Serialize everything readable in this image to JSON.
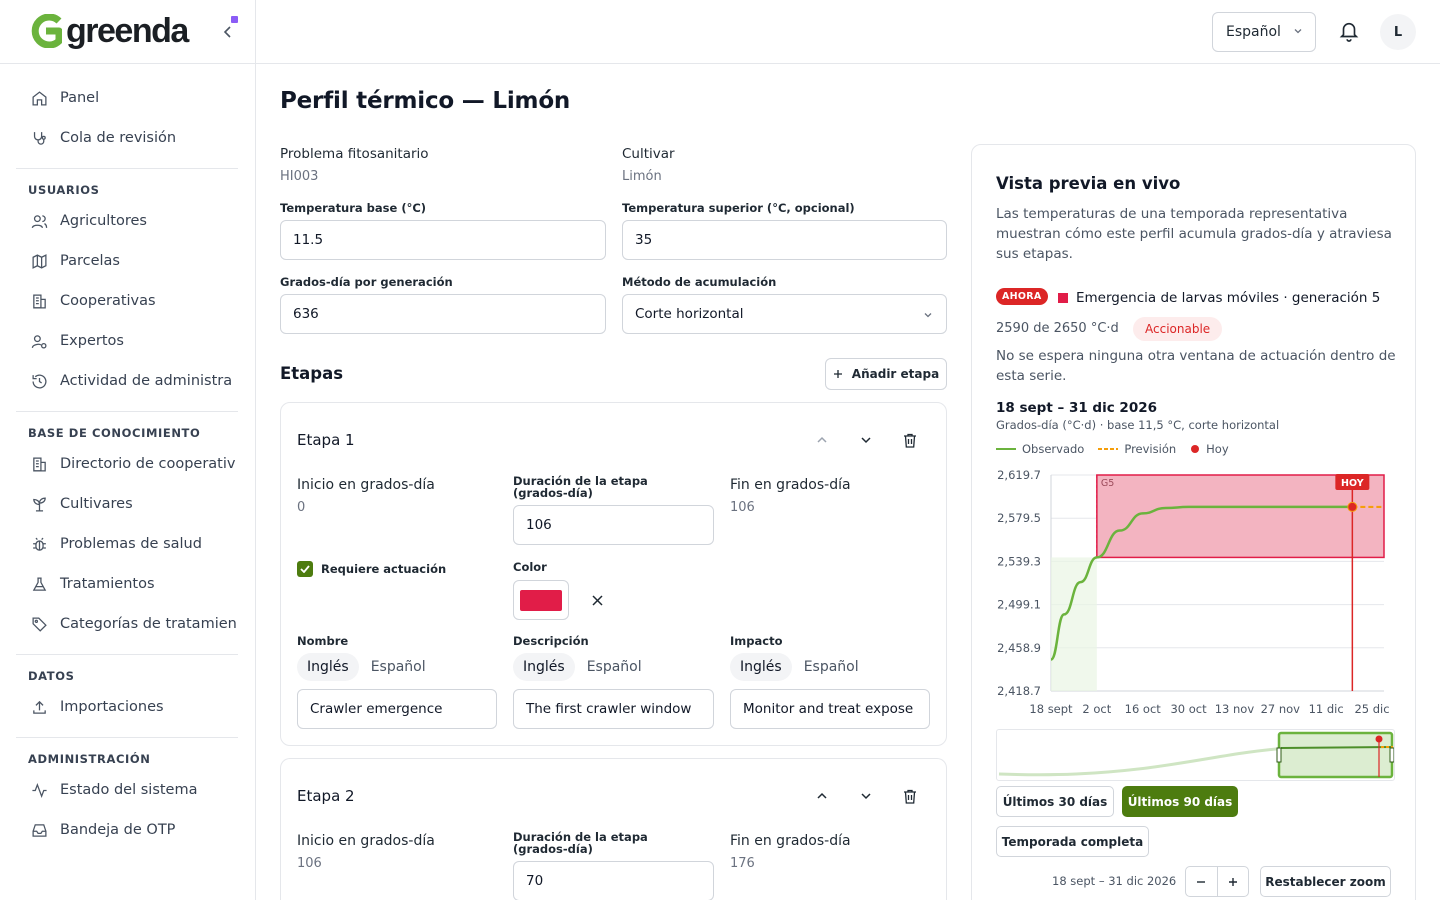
{
  "brand": {
    "name": "greenda"
  },
  "sidebar": {
    "top_items": [
      {
        "label": "Panel",
        "icon": "home-icon"
      },
      {
        "label": "Cola de revisión",
        "icon": "stethoscope-icon"
      }
    ],
    "sections": [
      {
        "heading": "USUARIOS",
        "items": [
          {
            "label": "Agricultores",
            "icon": "users-icon"
          },
          {
            "label": "Parcelas",
            "icon": "map-icon"
          },
          {
            "label": "Cooperativas",
            "icon": "building-icon"
          },
          {
            "label": "Expertos",
            "icon": "user-cog-icon"
          },
          {
            "label": "Actividad de administra",
            "icon": "history-icon"
          }
        ]
      },
      {
        "heading": "BASE DE CONOCIMIENTO",
        "items": [
          {
            "label": "Directorio de cooperativ",
            "icon": "building-icon"
          },
          {
            "label": "Cultivares",
            "icon": "sprout-icon"
          },
          {
            "label": "Problemas de salud",
            "icon": "bug-icon"
          },
          {
            "label": "Tratamientos",
            "icon": "flask-icon"
          },
          {
            "label": "Categorías de tratamien",
            "icon": "tag-icon"
          }
        ]
      },
      {
        "heading": "DATOS",
        "items": [
          {
            "label": "Importaciones",
            "icon": "upload-icon"
          }
        ]
      },
      {
        "heading": "ADMINISTRACIÓN",
        "items": [
          {
            "label": "Estado del sistema",
            "icon": "activity-icon"
          },
          {
            "label": "Bandeja de OTP",
            "icon": "inbox-icon"
          }
        ]
      }
    ]
  },
  "topbar": {
    "language": "Español",
    "avatar_initial": "L"
  },
  "page": {
    "title": "Perfil térmico — Limón",
    "problem_label": "Problema fitosanitario",
    "problem_value": "HI003",
    "cultivar_label": "Cultivar",
    "cultivar_value": "Limón",
    "base_temp_label": "Temperatura base (°C)",
    "base_temp_value": "11.5",
    "upper_temp_label": "Temperatura superior (°C, opcional)",
    "upper_temp_value": "35",
    "gdd_label": "Grados-día por generación",
    "gdd_value": "636",
    "method_label": "Método de acumulación",
    "method_value": "Corte horizontal",
    "stages_title": "Etapas",
    "add_stage": "Añadir etapa"
  },
  "stages": [
    {
      "title": "Etapa 1",
      "start_label": "Inicio en grados-día",
      "start_value": "0",
      "duration_label": "Duración de la etapa (grados-día)",
      "duration_value": "106",
      "end_label": "Fin en grados-día",
      "end_value": "106",
      "requires_action_label": "Requiere actuación",
      "requires_action": true,
      "color_label": "Color",
      "color": "#e11d48",
      "name_label": "Nombre",
      "desc_label": "Descripción",
      "impact_label": "Impacto",
      "lang_en": "Inglés",
      "lang_es": "Español",
      "name_value": "Crawler emergence",
      "desc_value": "The first crawler window",
      "impact_value": "Monitor and treat expose"
    },
    {
      "title": "Etapa 2",
      "start_label": "Inicio en grados-día",
      "start_value": "106",
      "duration_label": "Duración de la etapa (grados-día)",
      "duration_value": "70",
      "end_label": "Fin en grados-día",
      "end_value": "176"
    }
  ],
  "preview": {
    "title": "Vista previa en vivo",
    "description": "Las temperaturas de una temporada representativa muestran cómo este perfil acumula grados-día y atraviesa sus etapas.",
    "now_badge": "AHORA",
    "event": "Emergencia de larvas móviles · generación 5",
    "gd_progress": "2590 de 2650 °C·d",
    "action_badge": "Accionable",
    "note": "No se espera ninguna otra ventana de actuación dentro de esta serie.",
    "range": "18 sept – 31 dic 2026",
    "subtitle": "Grados-día (°C·d) · base 11,5 °C, corte horizontal",
    "legend_observed": "Observado",
    "legend_forecast": "Previsión",
    "legend_today": "Hoy",
    "btn_30": "Últimos 30 días",
    "btn_90": "Últimos 90 días",
    "btn_full": "Temporada completa",
    "footer_range": "18 sept – 31 dic 2026",
    "reset_zoom": "Restablecer zoom",
    "today_marker": "HOY",
    "stage_marker": "G5",
    "colors": {
      "observed": "#6bb33d",
      "forecast": "#f59e0b",
      "today": "#dc2626",
      "window": "#e11d48"
    }
  },
  "chart_data": {
    "type": "line",
    "title": "",
    "ylabel": "Grados-día (°C·d)",
    "x_ticks": [
      "18 sept",
      "2 oct",
      "16 oct",
      "30 oct",
      "13 nov",
      "27 nov",
      "11 dic",
      "25 dic"
    ],
    "y_ticks": [
      "2,619.7",
      "2,579.5",
      "2,539.3",
      "2,499.1",
      "2,458.9",
      "2,418.7"
    ],
    "ylim": [
      2418.7,
      2619.7
    ],
    "series": [
      {
        "name": "Observado",
        "x": [
          "18 sept",
          "22 sept",
          "27 sept",
          "2 oct",
          "9 oct",
          "16 oct",
          "23 oct",
          "30 oct",
          "13 nov",
          "27 nov",
          "11 dic",
          "19 dic"
        ],
        "y": [
          2448,
          2490,
          2520,
          2543,
          2568,
          2584,
          2589,
          2590,
          2590,
          2590,
          2590,
          2590
        ]
      },
      {
        "name": "Previsión",
        "x": [
          "19 dic",
          "31 dic"
        ],
        "y": [
          2590,
          2590
        ]
      }
    ],
    "today": "19 dic",
    "action_window": {
      "from_x": "2 oct",
      "y_from": 2543,
      "y_to": 2619.7
    }
  }
}
